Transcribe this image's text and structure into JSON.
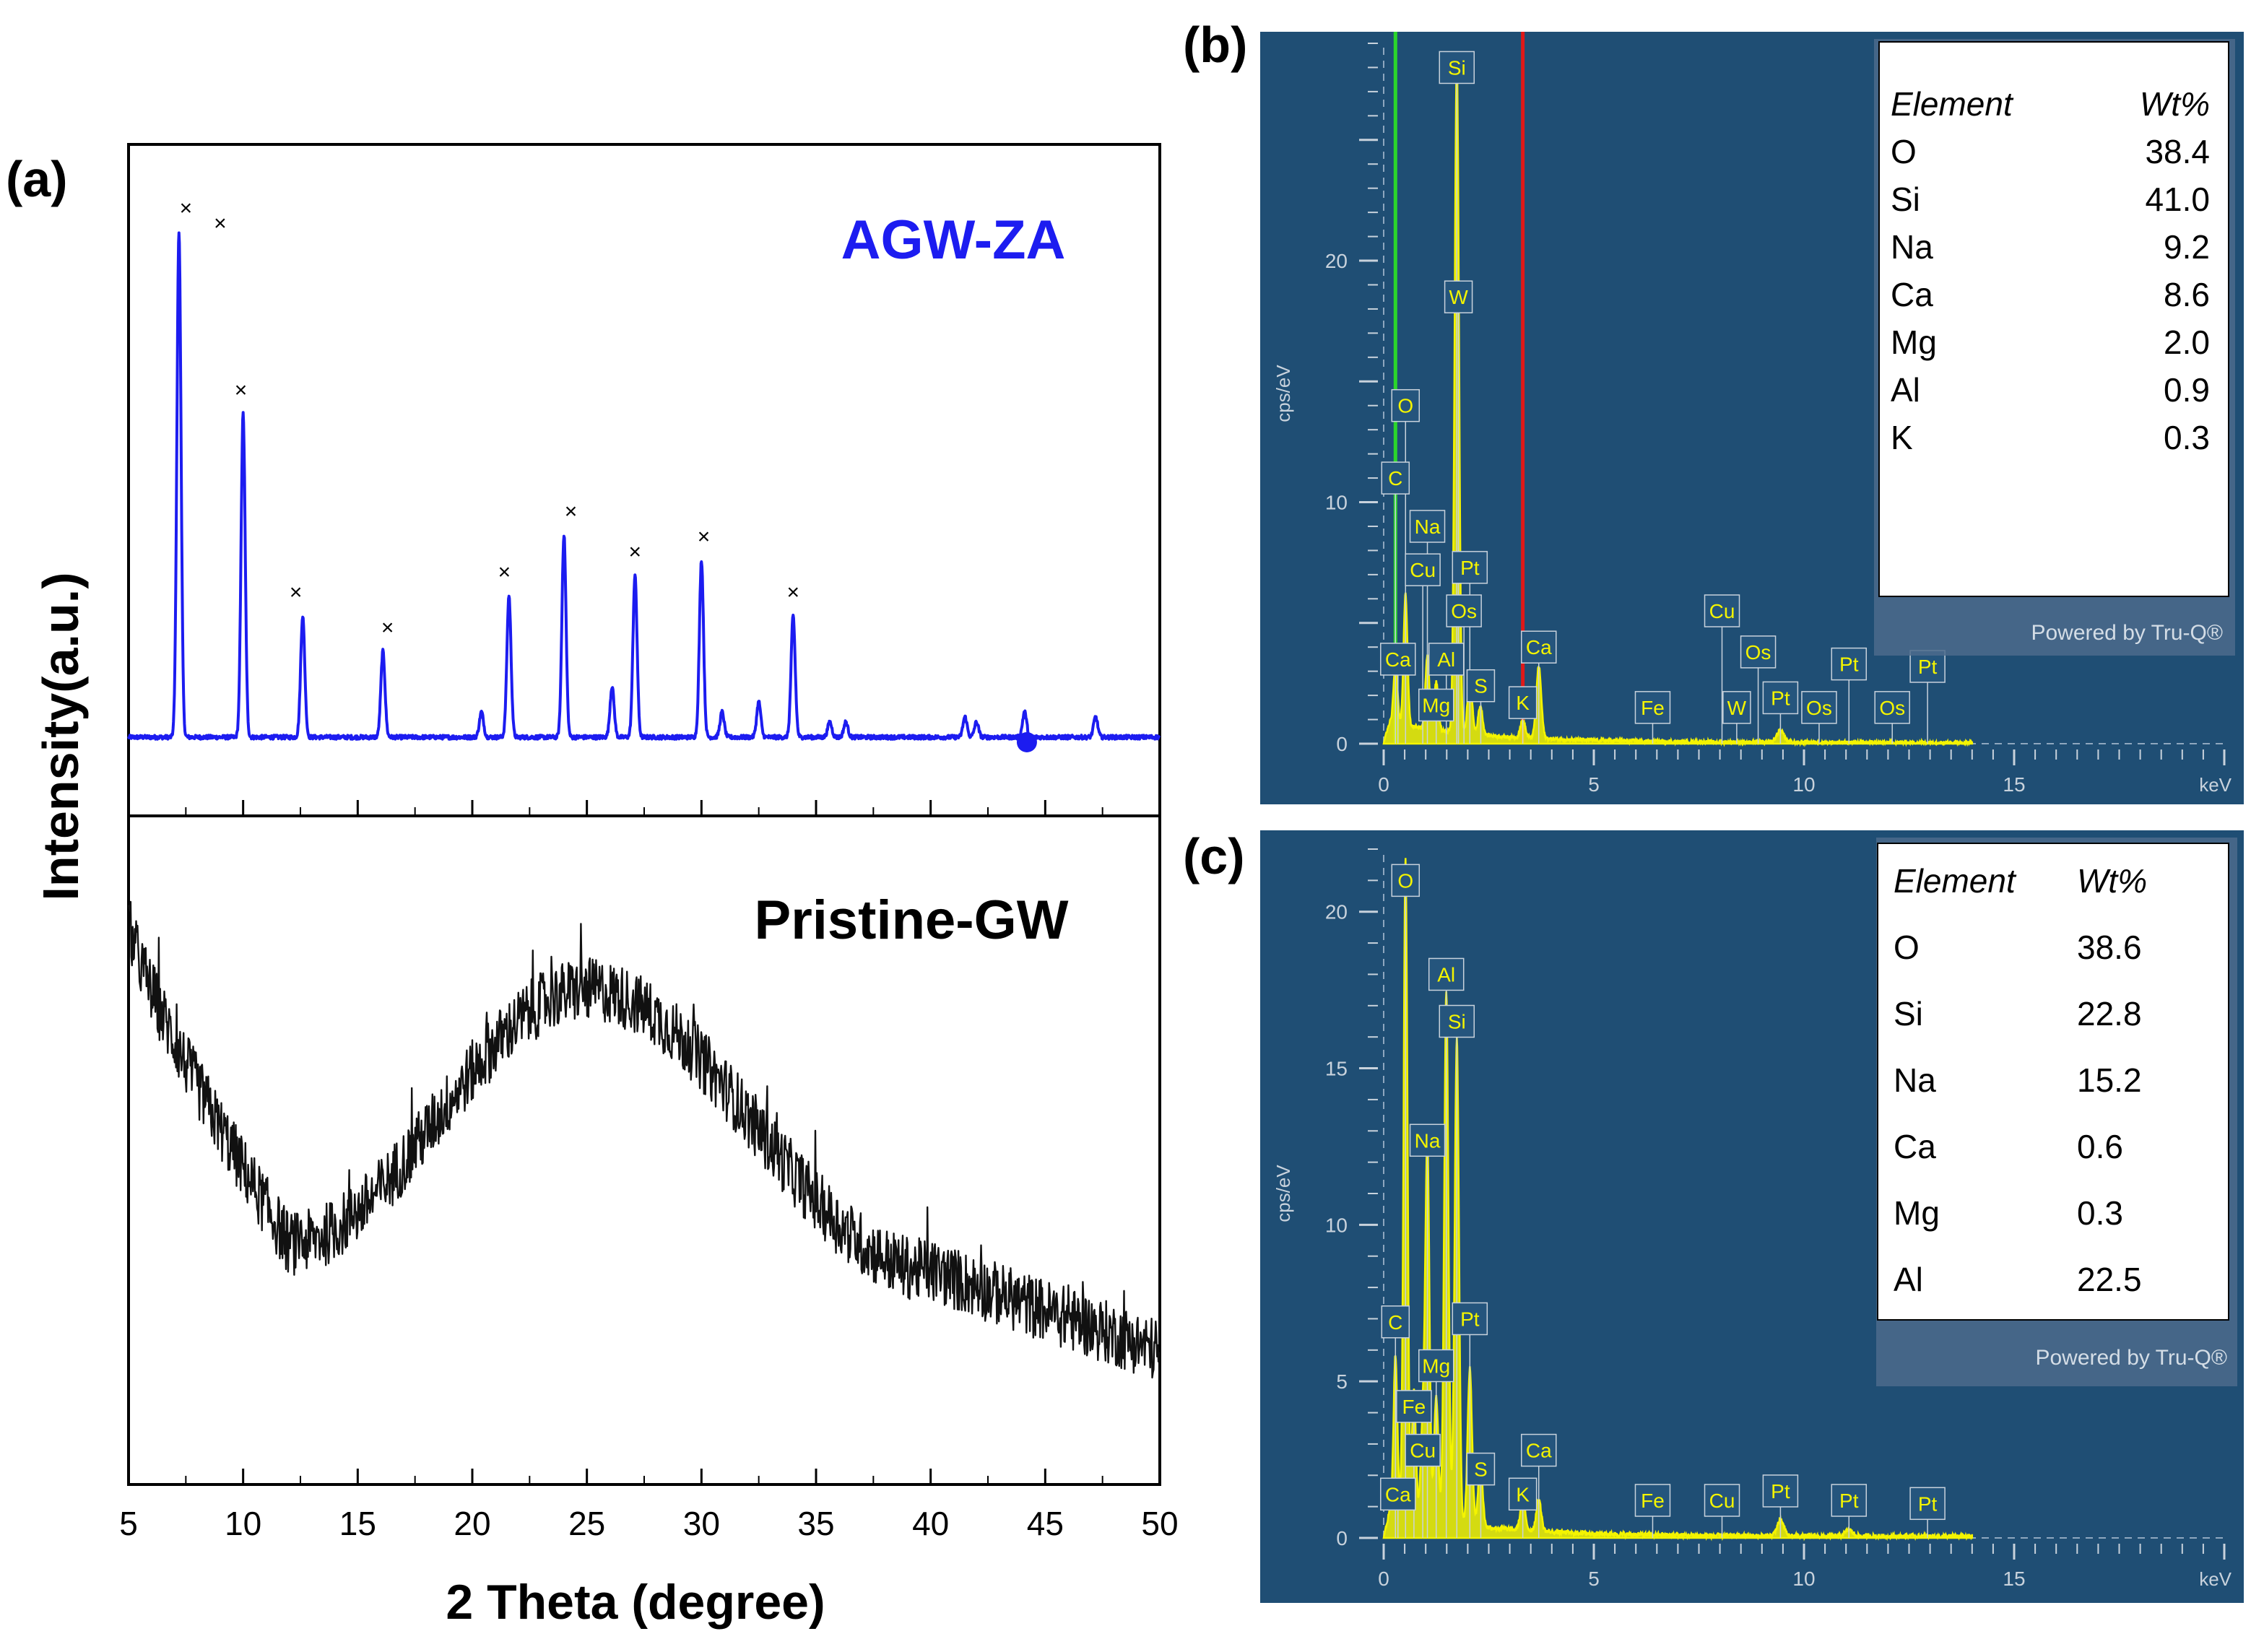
{
  "panel_labels": {
    "a": "(a)",
    "b": "(b)",
    "c": "(c)"
  },
  "colors": {
    "xrd_blue": "#1c1cf0",
    "xrd_black": "#000000",
    "eds_bg": "#1f4e74",
    "eds_trace": "#f4f400",
    "green_line": "#2bd62b",
    "red_line": "#e01818"
  },
  "chart_data": [
    {
      "id": "a",
      "type": "line",
      "title": "",
      "xlabel": "2 Theta (degree)",
      "ylabel": "Intensity(a.u.)",
      "xlim": [
        5,
        50
      ],
      "xticks": [
        "5",
        "10",
        "15",
        "20",
        "25",
        "30",
        "35",
        "40",
        "45",
        "50"
      ],
      "series": [
        {
          "name": "AGW-ZA",
          "peaks_2theta": [
            7.2,
            10.0,
            12.6,
            16.1,
            20.4,
            21.6,
            24.0,
            26.1,
            27.1,
            30.0,
            30.9,
            32.5,
            34.0,
            35.6,
            36.3,
            41.5,
            42.0,
            44.1,
            47.2
          ],
          "peak_rel_intensity": [
            1.0,
            0.64,
            0.24,
            0.17,
            0.05,
            0.28,
            0.4,
            0.1,
            0.32,
            0.35,
            0.05,
            0.07,
            0.24,
            0.03,
            0.03,
            0.04,
            0.03,
            0.05,
            0.04
          ],
          "x_markers_2theta": [
            7.5,
            9.0,
            9.9,
            12.3,
            16.3,
            21.4,
            24.3,
            27.1,
            30.1,
            34.0
          ]
        },
        {
          "name": "Pristine-GW",
          "shape": "amorphous hump",
          "hump_center_2theta": 25,
          "level_at": {
            "5": 0.84,
            "12": 0.36,
            "25": 0.74,
            "40": 0.32,
            "50": 0.2
          }
        }
      ]
    },
    {
      "id": "b",
      "type": "line",
      "title": "",
      "xlabel": "keV",
      "ylabel": "cps/eV",
      "xlim": [
        0,
        20
      ],
      "ylim": [
        0,
        29
      ],
      "xticks": [
        "0",
        "5",
        "10",
        "15"
      ],
      "yticks": [
        "0",
        "10",
        "20"
      ],
      "spectrum_peaks": [
        {
          "keV": 0.28,
          "cps": 2.5
        },
        {
          "keV": 0.52,
          "cps": 5.5
        },
        {
          "keV": 1.04,
          "cps": 3
        },
        {
          "keV": 1.25,
          "cps": 2
        },
        {
          "keV": 1.74,
          "cps": 28
        },
        {
          "keV": 2.05,
          "cps": 2.5
        },
        {
          "keV": 2.3,
          "cps": 1.2
        },
        {
          "keV": 3.31,
          "cps": 0.7
        },
        {
          "keV": 3.69,
          "cps": 3
        },
        {
          "keV": 9.44,
          "cps": 0.5
        }
      ],
      "peak_labels": [
        {
          "text": "Si",
          "keV": 1.74,
          "cps": 28
        },
        {
          "text": "W",
          "keV": 1.78,
          "cps": 18.5
        },
        {
          "text": "O",
          "keV": 0.52,
          "cps": 14
        },
        {
          "text": "C",
          "keV": 0.28,
          "cps": 11
        },
        {
          "text": "Na",
          "keV": 1.04,
          "cps": 9
        },
        {
          "text": "Cu",
          "keV": 0.93,
          "cps": 7.2
        },
        {
          "text": "Pt",
          "keV": 2.05,
          "cps": 7.3
        },
        {
          "text": "Os",
          "keV": 1.91,
          "cps": 5.5
        },
        {
          "text": "Ca",
          "keV": 3.69,
          "cps": 4
        },
        {
          "text": "Ca",
          "keV": 0.34,
          "cps": 3.5
        },
        {
          "text": "Al",
          "keV": 1.49,
          "cps": 3.5
        },
        {
          "text": "Mg",
          "keV": 1.25,
          "cps": 1.6
        },
        {
          "text": "S",
          "keV": 2.31,
          "cps": 2.4
        },
        {
          "text": "K",
          "keV": 3.31,
          "cps": 1.7
        },
        {
          "text": "Fe",
          "keV": 6.4,
          "cps": 1.5
        },
        {
          "text": "Cu",
          "keV": 8.05,
          "cps": 5.5
        },
        {
          "text": "Os",
          "keV": 8.91,
          "cps": 3.8
        },
        {
          "text": "W",
          "keV": 8.4,
          "cps": 1.5
        },
        {
          "text": "Pt",
          "keV": 9.44,
          "cps": 1.9
        },
        {
          "text": "Os",
          "keV": 10.36,
          "cps": 1.5
        },
        {
          "text": "Pt",
          "keV": 11.07,
          "cps": 3.3
        },
        {
          "text": "Os",
          "keV": 12.1,
          "cps": 1.5
        },
        {
          "text": "Pt",
          "keV": 12.94,
          "cps": 3.2
        }
      ],
      "marker_lines_keV": [
        {
          "keV": 0.28,
          "color": "green"
        },
        {
          "keV": 3.31,
          "color": "red"
        }
      ]
    },
    {
      "id": "c",
      "type": "line",
      "title": "",
      "xlabel": "keV",
      "ylabel": "cps/eV",
      "xlim": [
        0,
        20
      ],
      "ylim": [
        0,
        22
      ],
      "xticks": [
        "0",
        "5",
        "10",
        "15"
      ],
      "yticks": [
        "0",
        "5",
        "10",
        "15",
        "20"
      ],
      "spectrum_peaks": [
        {
          "keV": 0.28,
          "cps": 5
        },
        {
          "keV": 0.52,
          "cps": 21
        },
        {
          "keV": 0.72,
          "cps": 4
        },
        {
          "keV": 0.93,
          "cps": 3
        },
        {
          "keV": 1.04,
          "cps": 12
        },
        {
          "keV": 1.25,
          "cps": 4
        },
        {
          "keV": 1.49,
          "cps": 17
        },
        {
          "keV": 1.74,
          "cps": 15.5
        },
        {
          "keV": 2.05,
          "cps": 5
        },
        {
          "keV": 2.3,
          "cps": 2
        },
        {
          "keV": 3.31,
          "cps": 1
        },
        {
          "keV": 3.69,
          "cps": 1
        },
        {
          "keV": 9.44,
          "cps": 0.5
        },
        {
          "keV": 11.07,
          "cps": 0.2
        }
      ],
      "peak_labels": [
        {
          "text": "O",
          "keV": 0.52,
          "cps": 21
        },
        {
          "text": "Al",
          "keV": 1.49,
          "cps": 18
        },
        {
          "text": "Si",
          "keV": 1.74,
          "cps": 16.5
        },
        {
          "text": "Na",
          "keV": 1.04,
          "cps": 12.7
        },
        {
          "text": "C",
          "keV": 0.28,
          "cps": 6.9
        },
        {
          "text": "Pt",
          "keV": 2.05,
          "cps": 7
        },
        {
          "text": "Mg",
          "keV": 1.25,
          "cps": 5.5
        },
        {
          "text": "Fe",
          "keV": 0.72,
          "cps": 4.2
        },
        {
          "text": "Cu",
          "keV": 0.93,
          "cps": 2.8
        },
        {
          "text": "Ca",
          "keV": 0.34,
          "cps": 1.4
        },
        {
          "text": "S",
          "keV": 2.31,
          "cps": 2.2
        },
        {
          "text": "K",
          "keV": 3.31,
          "cps": 1.4
        },
        {
          "text": "Ca",
          "keV": 3.69,
          "cps": 2.8
        },
        {
          "text": "Fe",
          "keV": 6.4,
          "cps": 1.2
        },
        {
          "text": "Cu",
          "keV": 8.05,
          "cps": 1.2
        },
        {
          "text": "Pt",
          "keV": 9.44,
          "cps": 1.5
        },
        {
          "text": "Pt",
          "keV": 11.07,
          "cps": 1.2
        },
        {
          "text": "Pt",
          "keV": 12.94,
          "cps": 1.1
        }
      ]
    }
  ],
  "table_b": {
    "header": {
      "element": "Element",
      "wt": "Wt%"
    },
    "rows": [
      {
        "el": "O",
        "wt": "38.4"
      },
      {
        "el": "Si",
        "wt": "41.0"
      },
      {
        "el": "Na",
        "wt": "9.2"
      },
      {
        "el": "Ca",
        "wt": "8.6"
      },
      {
        "el": "Mg",
        "wt": "2.0"
      },
      {
        "el": "Al",
        "wt": "0.9"
      },
      {
        "el": "K",
        "wt": "0.3"
      }
    ],
    "powered": "Powered by Tru-Q®"
  },
  "table_c": {
    "header": {
      "element": "Element",
      "wt": "Wt%"
    },
    "rows": [
      {
        "el": "O",
        "wt": "38.6"
      },
      {
        "el": "Si",
        "wt": "22.8"
      },
      {
        "el": "Na",
        "wt": "15.2"
      },
      {
        "el": "Ca",
        "wt": "0.6"
      },
      {
        "el": "Mg",
        "wt": "0.3"
      },
      {
        "el": "Al",
        "wt": "22.5"
      }
    ],
    "powered": "Powered by Tru-Q®"
  }
}
